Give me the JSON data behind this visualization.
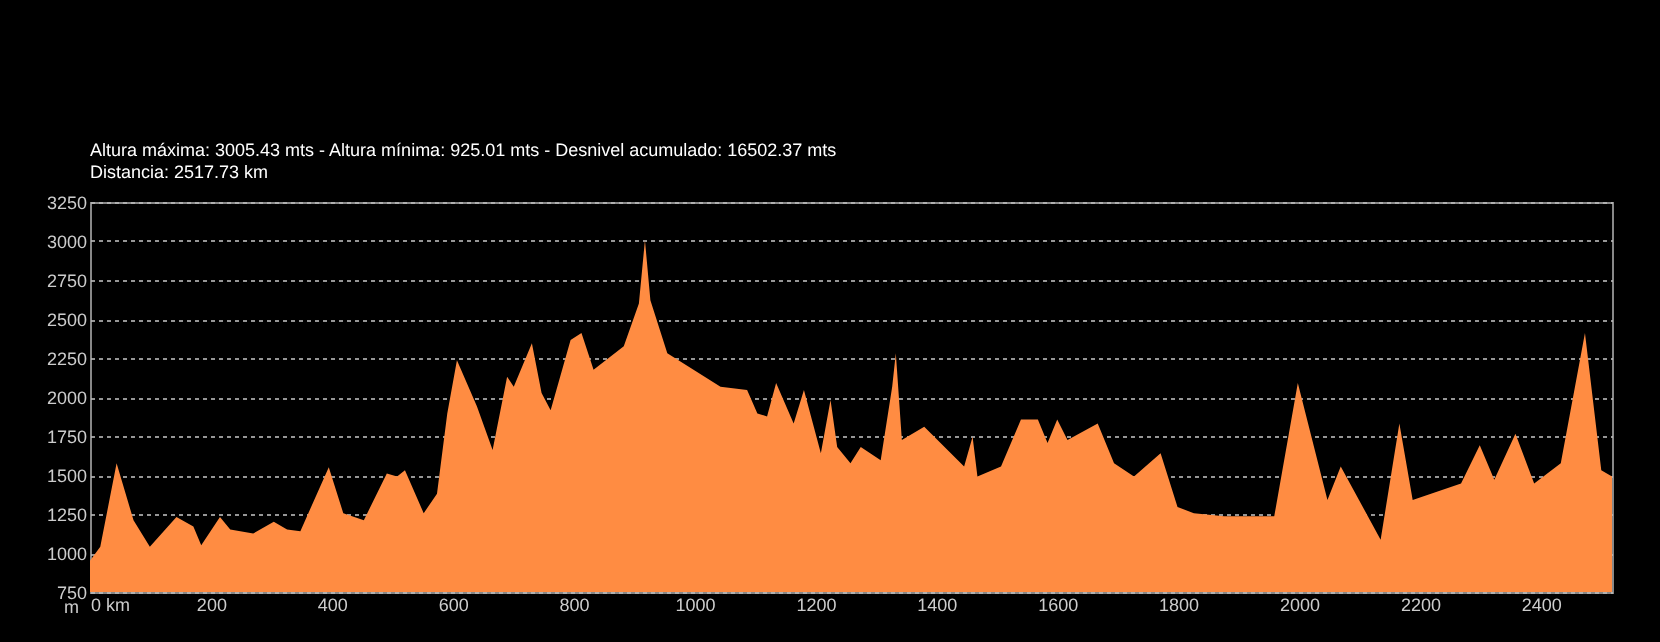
{
  "chart_data": {
    "type": "area",
    "title": "Altura máxima: 3005.43 mts - Altura mínima: 925.01 mts - Desnivel acumulado: 16502.37 mts",
    "subtitle": "Distancia: 2517.73 km",
    "ylabel": "m",
    "x": [
      0,
      17,
      44,
      72,
      99,
      143,
      171,
      184,
      215,
      232,
      270,
      304,
      326,
      348,
      395,
      419,
      453,
      491,
      508,
      521,
      552,
      574,
      591,
      607,
      640,
      666,
      690,
      701,
      731,
      747,
      762,
      795,
      813,
      833,
      883,
      908,
      918,
      927,
      955,
      1043,
      1087,
      1104,
      1120,
      1135,
      1164,
      1181,
      1209,
      1225,
      1236,
      1258,
      1275,
      1308,
      1327,
      1333,
      1343,
      1380,
      1446,
      1460,
      1468,
      1507,
      1540,
      1568,
      1584,
      1600,
      1617,
      1667,
      1694,
      1727,
      1771,
      1799,
      1826,
      1876,
      1959,
      1998,
      2047,
      2069,
      2135,
      2166,
      2188,
      2268,
      2299,
      2323,
      2358,
      2389,
      2433,
      2473,
      2500,
      2517.73
    ],
    "series": [
      {
        "color": "#ff8c42",
        "values": [
          950,
          1040,
          1575,
          1210,
          1040,
          1230,
          1170,
          1050,
          1230,
          1150,
          1125,
          1200,
          1150,
          1140,
          1550,
          1255,
          1210,
          1510,
          1490,
          1530,
          1255,
          1380,
          1895,
          2235,
          1940,
          1660,
          2130,
          2065,
          2345,
          2025,
          1915,
          2365,
          2410,
          2175,
          2325,
          2600,
          3005,
          2620,
          2280,
          2065,
          2045,
          1895,
          1875,
          2090,
          1830,
          2045,
          1640,
          1980,
          1680,
          1575,
          1680,
          1595,
          2065,
          2280,
          1725,
          1810,
          1555,
          1745,
          1490,
          1555,
          1855,
          1855,
          1705,
          1855,
          1725,
          1830,
          1575,
          1490,
          1640,
          1295,
          1255,
          1235,
          1235,
          2090,
          1340,
          1555,
          1085,
          1830,
          1340,
          1445,
          1690,
          1470,
          1765,
          1445,
          1575,
          2410,
          1530,
          1490
        ]
      }
    ],
    "xlim": [
      0,
      2517.73
    ],
    "xticks": [
      {
        "value": 0,
        "label": "0 km"
      },
      200,
      400,
      600,
      800,
      1000,
      1200,
      1400,
      1600,
      1800,
      2000,
      2200,
      2400
    ],
    "ylim": [
      750,
      3250
    ],
    "yticks": [
      750,
      1000,
      1250,
      1500,
      1750,
      2000,
      2250,
      2500,
      2750,
      3000,
      3250
    ],
    "grid": "y"
  }
}
